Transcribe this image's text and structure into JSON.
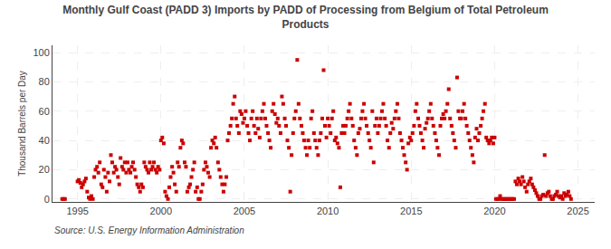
{
  "chart_data": {
    "type": "scatter",
    "title": "Monthly Gulf Coast (PADD 3) Imports by PADD of Processing from Belgium of Total Petroleum\nProducts",
    "ylabel": "Thousand Barrels per Day",
    "annotations": [
      "Source: U.S. Energy Information Administration"
    ],
    "color": "#cc0000",
    "marker": "square",
    "grid": true,
    "xlim": [
      1993.5,
      2026.0
    ],
    "ylim": [
      -2,
      105
    ],
    "xticks": [
      1995,
      2000,
      2005,
      2010,
      2015,
      2020,
      2025
    ],
    "yticks": [
      0,
      20,
      40,
      60,
      80,
      100
    ],
    "x": [
      1994.08,
      1994.17,
      1994.25,
      1995.0,
      1995.08,
      1995.17,
      1995.25,
      1995.33,
      1995.42,
      1995.5,
      1995.58,
      1995.67,
      1995.75,
      1995.83,
      1995.92,
      1996.0,
      1996.08,
      1996.17,
      1996.25,
      1996.33,
      1996.42,
      1996.5,
      1996.58,
      1996.67,
      1996.75,
      1996.83,
      1996.92,
      1997.0,
      1997.08,
      1997.17,
      1997.25,
      1997.33,
      1997.42,
      1997.5,
      1997.58,
      1997.67,
      1997.75,
      1997.83,
      1997.92,
      1998.0,
      1998.08,
      1998.17,
      1998.25,
      1998.33,
      1998.42,
      1998.5,
      1998.58,
      1998.67,
      1998.75,
      1998.83,
      1998.92,
      1999.0,
      1999.08,
      1999.17,
      1999.25,
      1999.33,
      1999.42,
      1999.5,
      1999.58,
      1999.67,
      1999.75,
      1999.83,
      1999.92,
      2000.0,
      2000.08,
      2000.17,
      2000.25,
      2000.33,
      2000.42,
      2000.5,
      2000.58,
      2000.67,
      2000.75,
      2000.83,
      2000.92,
      2001.0,
      2001.08,
      2001.17,
      2001.25,
      2001.33,
      2001.42,
      2001.5,
      2001.58,
      2001.67,
      2001.75,
      2001.83,
      2001.92,
      2002.0,
      2002.08,
      2002.17,
      2002.25,
      2002.33,
      2002.42,
      2002.5,
      2002.58,
      2002.67,
      2002.75,
      2002.83,
      2002.92,
      2003.0,
      2003.08,
      2003.17,
      2003.25,
      2003.33,
      2003.42,
      2003.5,
      2003.58,
      2003.67,
      2003.75,
      2003.83,
      2003.92,
      2004.0,
      2004.08,
      2004.17,
      2004.25,
      2004.33,
      2004.42,
      2004.5,
      2004.58,
      2004.67,
      2004.75,
      2004.83,
      2004.92,
      2005.0,
      2005.08,
      2005.17,
      2005.25,
      2005.33,
      2005.42,
      2005.5,
      2005.58,
      2005.67,
      2005.75,
      2005.83,
      2005.92,
      2006.0,
      2006.08,
      2006.17,
      2006.25,
      2006.33,
      2006.42,
      2006.5,
      2006.58,
      2006.67,
      2006.75,
      2006.83,
      2006.92,
      2007.0,
      2007.08,
      2007.17,
      2007.25,
      2007.33,
      2007.42,
      2007.5,
      2007.58,
      2007.67,
      2007.75,
      2007.83,
      2007.92,
      2008.0,
      2008.08,
      2008.17,
      2008.25,
      2008.33,
      2008.42,
      2008.5,
      2008.58,
      2008.67,
      2008.75,
      2008.83,
      2008.92,
      2009.0,
      2009.08,
      2009.17,
      2009.25,
      2009.33,
      2009.42,
      2009.5,
      2009.58,
      2009.67,
      2009.75,
      2009.83,
      2009.92,
      2010.0,
      2010.08,
      2010.17,
      2010.25,
      2010.33,
      2010.42,
      2010.5,
      2010.58,
      2010.67,
      2010.75,
      2010.83,
      2010.92,
      2011.0,
      2011.08,
      2011.17,
      2011.25,
      2011.33,
      2011.42,
      2011.5,
      2011.58,
      2011.67,
      2011.75,
      2011.83,
      2011.92,
      2012.0,
      2012.08,
      2012.17,
      2012.25,
      2012.33,
      2012.42,
      2012.5,
      2012.58,
      2012.67,
      2012.75,
      2012.83,
      2012.92,
      2013.0,
      2013.08,
      2013.17,
      2013.25,
      2013.33,
      2013.42,
      2013.5,
      2013.58,
      2013.67,
      2013.75,
      2013.83,
      2013.92,
      2014.0,
      2014.08,
      2014.17,
      2014.25,
      2014.33,
      2014.42,
      2014.5,
      2014.58,
      2014.67,
      2014.75,
      2014.83,
      2014.92,
      2015.0,
      2015.08,
      2015.17,
      2015.25,
      2015.33,
      2015.42,
      2015.5,
      2015.58,
      2015.67,
      2015.75,
      2015.83,
      2015.92,
      2016.0,
      2016.08,
      2016.17,
      2016.25,
      2016.33,
      2016.42,
      2016.5,
      2016.58,
      2016.67,
      2016.75,
      2016.83,
      2016.92,
      2017.0,
      2017.08,
      2017.17,
      2017.25,
      2017.33,
      2017.42,
      2017.5,
      2017.58,
      2017.67,
      2017.75,
      2017.83,
      2017.92,
      2018.0,
      2018.08,
      2018.17,
      2018.25,
      2018.33,
      2018.42,
      2018.5,
      2018.58,
      2018.67,
      2018.75,
      2018.83,
      2018.92,
      2019.0,
      2019.08,
      2019.17,
      2019.25,
      2019.33,
      2019.42,
      2019.5,
      2019.58,
      2019.67,
      2019.75,
      2019.83,
      2019.92,
      2020.0,
      2020.08,
      2020.17,
      2020.25,
      2020.33,
      2020.42,
      2020.5,
      2020.58,
      2020.67,
      2020.75,
      2020.83,
      2020.92,
      2021.0,
      2021.08,
      2021.17,
      2021.25,
      2021.33,
      2021.42,
      2021.5,
      2021.58,
      2021.67,
      2021.75,
      2021.83,
      2021.92,
      2022.0,
      2022.08,
      2022.17,
      2022.25,
      2022.33,
      2022.42,
      2022.5,
      2022.58,
      2022.67,
      2022.75,
      2022.83,
      2022.92,
      2023.0,
      2023.08,
      2023.17,
      2023.25,
      2023.33,
      2023.42,
      2023.5,
      2023.58,
      2023.67,
      2023.75,
      2023.83,
      2023.92,
      2024.0,
      2024.08,
      2024.17,
      2024.25,
      2024.33,
      2024.42,
      2024.5,
      2024.58
    ],
    "values": [
      0,
      0,
      0,
      12,
      13,
      11,
      8,
      10,
      12,
      14,
      5,
      1,
      0,
      2,
      0,
      15,
      20,
      22,
      18,
      25,
      10,
      8,
      20,
      15,
      5,
      18,
      12,
      30,
      25,
      18,
      22,
      20,
      15,
      10,
      28,
      22,
      20,
      25,
      18,
      25,
      20,
      18,
      22,
      25,
      20,
      15,
      10,
      8,
      5,
      10,
      8,
      25,
      22,
      20,
      18,
      25,
      20,
      22,
      25,
      20,
      18,
      22,
      20,
      40,
      42,
      38,
      5,
      2,
      0,
      8,
      15,
      22,
      18,
      10,
      5,
      25,
      22,
      35,
      40,
      38,
      25,
      22,
      5,
      8,
      10,
      15,
      20,
      25,
      5,
      8,
      0,
      0,
      5,
      10,
      20,
      25,
      22,
      18,
      15,
      35,
      40,
      38,
      42,
      35,
      25,
      20,
      15,
      10,
      5,
      10,
      15,
      40,
      45,
      50,
      55,
      65,
      70,
      55,
      50,
      45,
      60,
      58,
      52,
      55,
      60,
      50,
      45,
      40,
      55,
      60,
      50,
      45,
      55,
      48,
      42,
      55,
      60,
      65,
      55,
      50,
      45,
      40,
      35,
      60,
      65,
      58,
      52,
      55,
      50,
      45,
      70,
      65,
      55,
      50,
      40,
      35,
      5,
      30,
      45,
      55,
      60,
      95,
      65,
      55,
      50,
      45,
      40,
      35,
      30,
      40,
      35,
      55,
      60,
      45,
      40,
      35,
      30,
      40,
      45,
      55,
      88,
      50,
      42,
      55,
      50,
      45,
      55,
      60,
      40,
      42,
      38,
      35,
      8,
      45,
      50,
      45,
      50,
      55,
      60,
      65,
      55,
      50,
      40,
      35,
      30,
      45,
      48,
      55,
      60,
      65,
      55,
      50,
      45,
      40,
      35,
      60,
      25,
      50,
      55,
      45,
      50,
      55,
      60,
      65,
      55,
      50,
      40,
      35,
      45,
      52,
      48,
      55,
      60,
      65,
      55,
      45,
      40,
      35,
      30,
      25,
      20,
      38,
      42,
      40,
      45,
      50,
      60,
      65,
      55,
      50,
      45,
      40,
      35,
      48,
      52,
      55,
      60,
      65,
      55,
      50,
      45,
      40,
      35,
      30,
      50,
      55,
      58,
      55,
      60,
      65,
      75,
      55,
      50,
      45,
      40,
      35,
      83,
      60,
      55,
      55,
      60,
      65,
      55,
      50,
      45,
      40,
      35,
      30,
      25,
      42,
      48,
      40,
      45,
      50,
      55,
      60,
      65,
      42,
      40,
      38,
      40,
      42,
      38,
      42,
      0,
      0,
      0,
      2,
      0,
      0,
      0,
      0,
      0,
      0,
      0,
      0,
      0,
      0,
      12,
      10,
      14,
      12,
      10,
      15,
      12,
      8,
      5,
      10,
      12,
      14,
      10,
      8,
      6,
      4,
      2,
      0,
      0,
      2,
      3,
      30,
      2,
      4,
      5,
      2,
      0,
      0,
      2,
      3,
      5,
      2,
      1,
      2,
      0,
      4,
      2,
      3,
      5,
      2,
      0
    ]
  }
}
